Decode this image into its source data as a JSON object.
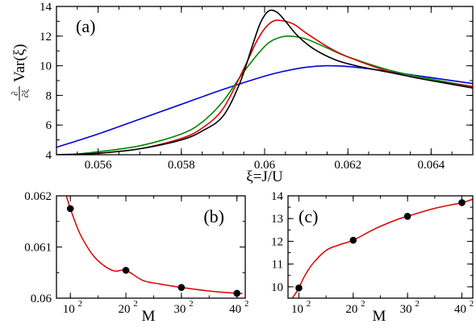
{
  "chart_data": [
    {
      "panel": "a",
      "type": "line",
      "panel_label": "(a)",
      "xlabel": "ξ=J/U",
      "ylabel_frac_num": "∂",
      "ylabel_frac_den": "∂ξ",
      "ylabel_text": "Var(ξ)",
      "xlim": [
        0.055,
        0.065
      ],
      "ylim": [
        4,
        14
      ],
      "xticks": [
        0.056,
        0.058,
        0.06,
        0.062,
        0.064
      ],
      "xtick_labels": [
        "0.056",
        "0.058",
        "0.06",
        "0.062",
        "0.064"
      ],
      "yticks": [
        4,
        6,
        8,
        10,
        12,
        14
      ],
      "ytick_labels": [
        "4",
        "6",
        "8",
        "10",
        "12",
        "14"
      ],
      "series": [
        {
          "color": "#0000dd",
          "x": [
            0.055,
            0.056,
            0.057,
            0.058,
            0.059,
            0.06,
            0.0605,
            0.061,
            0.0615,
            0.062,
            0.0625,
            0.063,
            0.064,
            0.065
          ],
          "y": [
            4.5,
            5.4,
            6.4,
            7.4,
            8.4,
            9.3,
            9.65,
            9.9,
            10.0,
            9.95,
            9.8,
            9.6,
            9.2,
            8.8
          ]
        },
        {
          "color": "#008800",
          "x": [
            0.055,
            0.056,
            0.057,
            0.058,
            0.0585,
            0.059,
            0.0595,
            0.06,
            0.0603,
            0.0606,
            0.061,
            0.0615,
            0.062,
            0.063,
            0.064,
            0.065
          ],
          "y": [
            3.9,
            4.2,
            4.6,
            5.4,
            6.2,
            7.6,
            9.6,
            11.3,
            11.85,
            12.0,
            11.8,
            11.2,
            10.6,
            9.7,
            9.1,
            8.6
          ]
        },
        {
          "color": "#dd0000",
          "x": [
            0.055,
            0.056,
            0.057,
            0.058,
            0.0585,
            0.059,
            0.0595,
            0.0598,
            0.06,
            0.0602,
            0.0604,
            0.0607,
            0.061,
            0.0615,
            0.062,
            0.063,
            0.064,
            0.065
          ],
          "y": [
            3.95,
            4.1,
            4.4,
            5.1,
            5.8,
            7.1,
            9.8,
            11.6,
            12.5,
            13.0,
            13.05,
            12.8,
            12.2,
            11.3,
            10.6,
            9.6,
            9.0,
            8.6
          ]
        },
        {
          "color": "#000000",
          "x": [
            0.055,
            0.056,
            0.057,
            0.058,
            0.0585,
            0.059,
            0.0594,
            0.0597,
            0.0599,
            0.0601,
            0.0603,
            0.0605,
            0.0608,
            0.0612,
            0.0617,
            0.0622,
            0.063,
            0.064,
            0.065
          ],
          "y": [
            4.0,
            4.1,
            4.4,
            5.0,
            5.6,
            6.6,
            8.8,
            11.3,
            12.9,
            13.7,
            13.6,
            13.0,
            12.0,
            11.1,
            10.4,
            10.0,
            9.55,
            9.0,
            8.5
          ]
        }
      ]
    },
    {
      "panel": "b",
      "type": "scatter",
      "panel_label": "(b)",
      "xlabel": "M",
      "xlim": [
        75,
        415
      ],
      "ylim": [
        0.06,
        0.062
      ],
      "xticks": [
        100,
        200,
        300,
        400
      ],
      "xtick_base": [
        "10",
        "20",
        "30",
        "40"
      ],
      "xtick_exp": [
        "2",
        "2",
        "2",
        "2"
      ],
      "yticks": [
        0.06,
        0.061,
        0.062
      ],
      "ytick_labels": [
        "0.06",
        "0.061",
        "0.062"
      ],
      "points": {
        "x": [
          100,
          200,
          300,
          400
        ],
        "y": [
          0.06175,
          0.060545,
          0.06021,
          0.060095
        ]
      },
      "fit": {
        "color": "#dd0000",
        "x": [
          90,
          95,
          100,
          110,
          120,
          140,
          160,
          180,
          200,
          230,
          260,
          300,
          350,
          400,
          410
        ],
        "y": [
          0.0621,
          0.06192,
          0.06175,
          0.06145,
          0.0612,
          0.06085,
          0.06064,
          0.06053,
          0.060545,
          0.06035,
          0.06028,
          0.06021,
          0.06014,
          0.060095,
          0.06009
        ]
      }
    },
    {
      "panel": "c",
      "type": "scatter",
      "panel_label": "(c)",
      "xlabel": "M",
      "xlim": [
        80,
        420
      ],
      "ylim": [
        9.5,
        14
      ],
      "xticks": [
        100,
        200,
        300,
        400
      ],
      "xtick_base": [
        "10",
        "20",
        "30",
        "40"
      ],
      "xtick_exp": [
        "2",
        "2",
        "2",
        "2"
      ],
      "yticks": [
        10,
        11,
        12,
        13,
        14
      ],
      "ytick_labels": [
        "10",
        "11",
        "12",
        "13",
        "14"
      ],
      "points": {
        "x": [
          100,
          200,
          300,
          400
        ],
        "y": [
          9.95,
          12.05,
          13.1,
          13.7
        ]
      },
      "fit": {
        "color": "#dd0000",
        "x": [
          88,
          95,
          100,
          110,
          125,
          150,
          175,
          200,
          240,
          280,
          300,
          350,
          400,
          420
        ],
        "y": [
          9.5,
          9.75,
          9.95,
          10.45,
          11.0,
          11.6,
          11.85,
          12.05,
          12.55,
          12.95,
          13.1,
          13.45,
          13.7,
          13.85
        ]
      }
    }
  ]
}
